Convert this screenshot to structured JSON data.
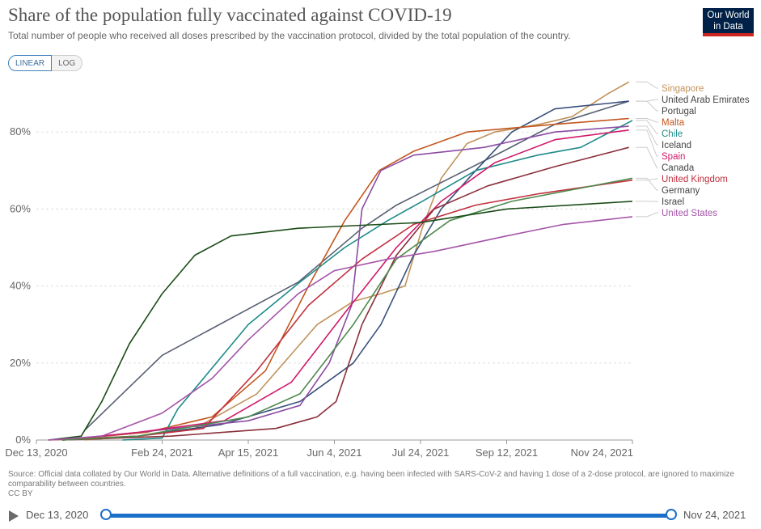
{
  "header": {
    "title": "Share of the population fully vaccinated against COVID-19",
    "subtitle": "Total number of people who received all doses prescribed by the vaccination protocol, divided by the total population of the country.",
    "logo_line1": "Our World",
    "logo_line2": "in Data"
  },
  "scale_toggle": {
    "linear_label": "LINEAR",
    "log_label": "LOG",
    "selected": "LINEAR"
  },
  "chart_data": {
    "type": "line",
    "x_axis": {
      "ticks": [
        "Dec 13, 2020",
        "Feb 24, 2021",
        "Apr 15, 2021",
        "Jun 4, 2021",
        "Jul 24, 2021",
        "Sep 12, 2021",
        "Nov 24, 2021"
      ],
      "range": [
        "2020-12-13",
        "2021-11-24"
      ]
    },
    "y_axis": {
      "ticks": [
        "0%",
        "20%",
        "40%",
        "60%",
        "80%"
      ],
      "range": [
        0,
        92
      ],
      "unit": "%"
    },
    "grid": "horizontal dotted",
    "legend_placement": "right",
    "series": [
      {
        "name": "Singapore",
        "color": "#c0925a",
        "points": [
          [
            "2021-01-10",
            0
          ],
          [
            "2021-02-10",
            1
          ],
          [
            "2021-03-15",
            3
          ],
          [
            "2021-04-20",
            12
          ],
          [
            "2021-05-25",
            30
          ],
          [
            "2021-06-15",
            36
          ],
          [
            "2021-07-01",
            38
          ],
          [
            "2021-07-15",
            40
          ],
          [
            "2021-07-25",
            55
          ],
          [
            "2021-08-05",
            68
          ],
          [
            "2021-08-20",
            77
          ],
          [
            "2021-09-05",
            80
          ],
          [
            "2021-10-01",
            82
          ],
          [
            "2021-10-20",
            84
          ],
          [
            "2021-11-10",
            90
          ],
          [
            "2021-11-22",
            93
          ]
        ]
      },
      {
        "name": "United Arab Emirates",
        "color": "#575f71",
        "points": [
          [
            "2021-01-10",
            2.5
          ],
          [
            "2021-02-24",
            22
          ],
          [
            "2021-05-14",
            41
          ],
          [
            "2021-06-20",
            55
          ],
          [
            "2021-07-10",
            61
          ],
          [
            "2021-08-10",
            68
          ],
          [
            "2021-09-10",
            75
          ],
          [
            "2021-10-10",
            82
          ],
          [
            "2021-11-22",
            88
          ]
        ]
      },
      {
        "name": "Portugal",
        "color": "#38507a",
        "points": [
          [
            "2020-12-28",
            0
          ],
          [
            "2021-02-10",
            1
          ],
          [
            "2021-03-30",
            4
          ],
          [
            "2021-05-15",
            10
          ],
          [
            "2021-06-15",
            20
          ],
          [
            "2021-07-01",
            30
          ],
          [
            "2021-07-20",
            48
          ],
          [
            "2021-08-05",
            60
          ],
          [
            "2021-08-25",
            70
          ],
          [
            "2021-09-15",
            80
          ],
          [
            "2021-10-10",
            86
          ],
          [
            "2021-11-22",
            88
          ]
        ]
      },
      {
        "name": "Malta",
        "color": "#c4561f",
        "points": [
          [
            "2020-12-28",
            0
          ],
          [
            "2021-02-15",
            2
          ],
          [
            "2021-03-25",
            6
          ],
          [
            "2021-04-25",
            18
          ],
          [
            "2021-05-20",
            40
          ],
          [
            "2021-06-10",
            57
          ],
          [
            "2021-06-30",
            70
          ],
          [
            "2021-07-20",
            75
          ],
          [
            "2021-08-20",
            80
          ],
          [
            "2021-10-10",
            82
          ],
          [
            "2021-11-22",
            83.5
          ]
        ]
      },
      {
        "name": "Chile",
        "color": "#1f8a8a",
        "points": [
          [
            "2021-02-01",
            0
          ],
          [
            "2021-02-24",
            0.5
          ],
          [
            "2021-03-05",
            8
          ],
          [
            "2021-03-20",
            16
          ],
          [
            "2021-04-15",
            30
          ],
          [
            "2021-05-15",
            41
          ],
          [
            "2021-06-10",
            50
          ],
          [
            "2021-07-05",
            57
          ],
          [
            "2021-07-25",
            62
          ],
          [
            "2021-08-25",
            70
          ],
          [
            "2021-09-30",
            74
          ],
          [
            "2021-10-25",
            76
          ],
          [
            "2021-11-24",
            83
          ]
        ]
      },
      {
        "name": "Iceland",
        "color": "#8b4ba3",
        "points": [
          [
            "2020-12-28",
            0
          ],
          [
            "2021-02-10",
            2
          ],
          [
            "2021-04-15",
            5
          ],
          [
            "2021-05-15",
            9
          ],
          [
            "2021-06-01",
            20
          ],
          [
            "2021-06-14",
            35
          ],
          [
            "2021-06-20",
            60
          ],
          [
            "2021-07-01",
            70
          ],
          [
            "2021-07-20",
            74
          ],
          [
            "2021-08-30",
            76
          ],
          [
            "2021-10-10",
            80
          ],
          [
            "2021-11-22",
            81.5
          ]
        ]
      },
      {
        "name": "Spain",
        "color": "#d01a6a",
        "points": [
          [
            "2020-12-28",
            0
          ],
          [
            "2021-02-10",
            2
          ],
          [
            "2021-04-01",
            5
          ],
          [
            "2021-05-10",
            15
          ],
          [
            "2021-06-10",
            33
          ],
          [
            "2021-07-10",
            50
          ],
          [
            "2021-08-05",
            62
          ],
          [
            "2021-09-05",
            72
          ],
          [
            "2021-10-10",
            78
          ],
          [
            "2021-11-22",
            80.5
          ]
        ]
      },
      {
        "name": "Canada",
        "color": "#8a2f3a",
        "points": [
          [
            "2020-12-28",
            0
          ],
          [
            "2021-03-01",
            1
          ],
          [
            "2021-05-01",
            3
          ],
          [
            "2021-05-25",
            6
          ],
          [
            "2021-06-05",
            10
          ],
          [
            "2021-06-20",
            30
          ],
          [
            "2021-07-10",
            48
          ],
          [
            "2021-08-01",
            60
          ],
          [
            "2021-09-01",
            66
          ],
          [
            "2021-10-10",
            71
          ],
          [
            "2021-11-22",
            76
          ]
        ]
      },
      {
        "name": "United Kingdom",
        "color": "#c2303e",
        "points": [
          [
            "2020-12-20",
            0
          ],
          [
            "2021-02-10",
            1
          ],
          [
            "2021-03-20",
            3
          ],
          [
            "2021-04-20",
            18
          ],
          [
            "2021-05-20",
            35
          ],
          [
            "2021-06-20",
            47
          ],
          [
            "2021-07-20",
            56
          ],
          [
            "2021-08-25",
            61
          ],
          [
            "2021-10-01",
            64
          ],
          [
            "2021-11-24",
            67.5
          ]
        ]
      },
      {
        "name": "Germany",
        "color": "#4f8a4f",
        "points": [
          [
            "2020-12-28",
            0
          ],
          [
            "2021-02-10",
            1
          ],
          [
            "2021-04-15",
            6
          ],
          [
            "2021-05-15",
            12
          ],
          [
            "2021-06-15",
            30
          ],
          [
            "2021-07-10",
            47
          ],
          [
            "2021-08-10",
            57
          ],
          [
            "2021-09-15",
            62
          ],
          [
            "2021-10-20",
            65
          ],
          [
            "2021-11-24",
            68
          ]
        ]
      },
      {
        "name": "Israel",
        "color": "#1b4d18",
        "points": [
          [
            "2020-12-20",
            0
          ],
          [
            "2021-01-08",
            1
          ],
          [
            "2021-01-20",
            10
          ],
          [
            "2021-02-05",
            25
          ],
          [
            "2021-02-24",
            38
          ],
          [
            "2021-03-15",
            48
          ],
          [
            "2021-04-05",
            53
          ],
          [
            "2021-05-14",
            55
          ],
          [
            "2021-07-24",
            56.5
          ],
          [
            "2021-09-12",
            60
          ],
          [
            "2021-11-24",
            62
          ]
        ]
      },
      {
        "name": "United States",
        "color": "#a455a8",
        "points": [
          [
            "2020-12-20",
            0
          ],
          [
            "2021-01-20",
            1
          ],
          [
            "2021-02-24",
            7
          ],
          [
            "2021-03-25",
            16
          ],
          [
            "2021-04-15",
            26
          ],
          [
            "2021-05-14",
            38
          ],
          [
            "2021-06-04",
            44
          ],
          [
            "2021-07-05",
            47
          ],
          [
            "2021-08-01",
            49
          ],
          [
            "2021-09-12",
            53
          ],
          [
            "2021-10-15",
            56
          ],
          [
            "2021-11-24",
            58
          ]
        ]
      }
    ]
  },
  "footer": {
    "source": "Source: Official data collated by Our World in Data. Alternative definitions of a full vaccination, e.g. having been infected with SARS-CoV-2 and having 1 dose of a 2-dose protocol, are ignored to maximize comparability between countries.",
    "license": "CC BY"
  },
  "timeline": {
    "start_label": "Dec 13, 2020",
    "end_label": "Nov 24, 2021"
  }
}
